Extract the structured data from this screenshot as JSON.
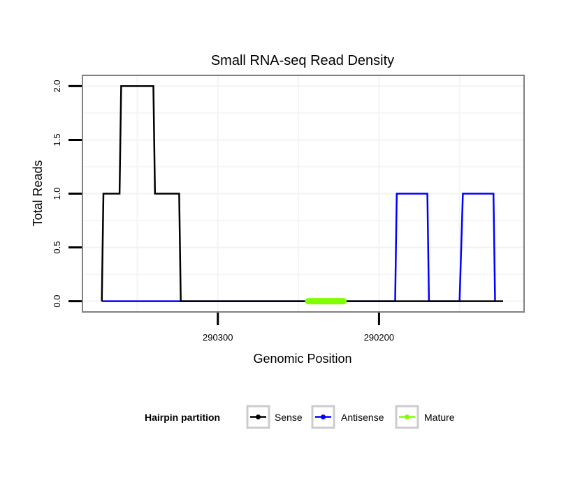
{
  "chart_data": {
    "type": "line",
    "title": "Small RNA-seq Read Density",
    "xlabel": "Genomic Position",
    "ylabel": "Total Reads",
    "xlim": [
      290384,
      290110
    ],
    "x_reversed": true,
    "ylim": [
      -0.1,
      2.1
    ],
    "x_ticks": [
      290300,
      290200
    ],
    "x_tick_labels": [
      "290300",
      "290200"
    ],
    "y_ticks": [
      0,
      0.5,
      1,
      1.5,
      2
    ],
    "y_tick_labels": [
      "0.0",
      "0.5",
      "1.0",
      "1.5",
      "2.0"
    ],
    "grid": true,
    "legend": {
      "title": "Hairpin partition",
      "placement": "bottom",
      "entries": [
        "Sense",
        "Antisense",
        "Mature"
      ]
    },
    "series": [
      {
        "name": "Antisense",
        "color": "#0000ff",
        "x": [
          290372,
          290190,
          290189,
          290170,
          290169,
          290150,
          290148,
          290129,
          290128
        ],
        "y": [
          0,
          0,
          1,
          1,
          0,
          0,
          1,
          1,
          0
        ]
      },
      {
        "name": "Sense",
        "color": "#000000",
        "x": [
          290372,
          290371,
          290361,
          290360,
          290340,
          290339,
          290324,
          290323,
          290123
        ],
        "y": [
          0,
          1,
          1,
          2,
          2,
          1,
          1,
          0,
          0
        ]
      },
      {
        "name": "Mature",
        "color": "#7fff00",
        "x": [
          290244,
          290222
        ],
        "y": [
          0,
          0
        ]
      }
    ]
  }
}
